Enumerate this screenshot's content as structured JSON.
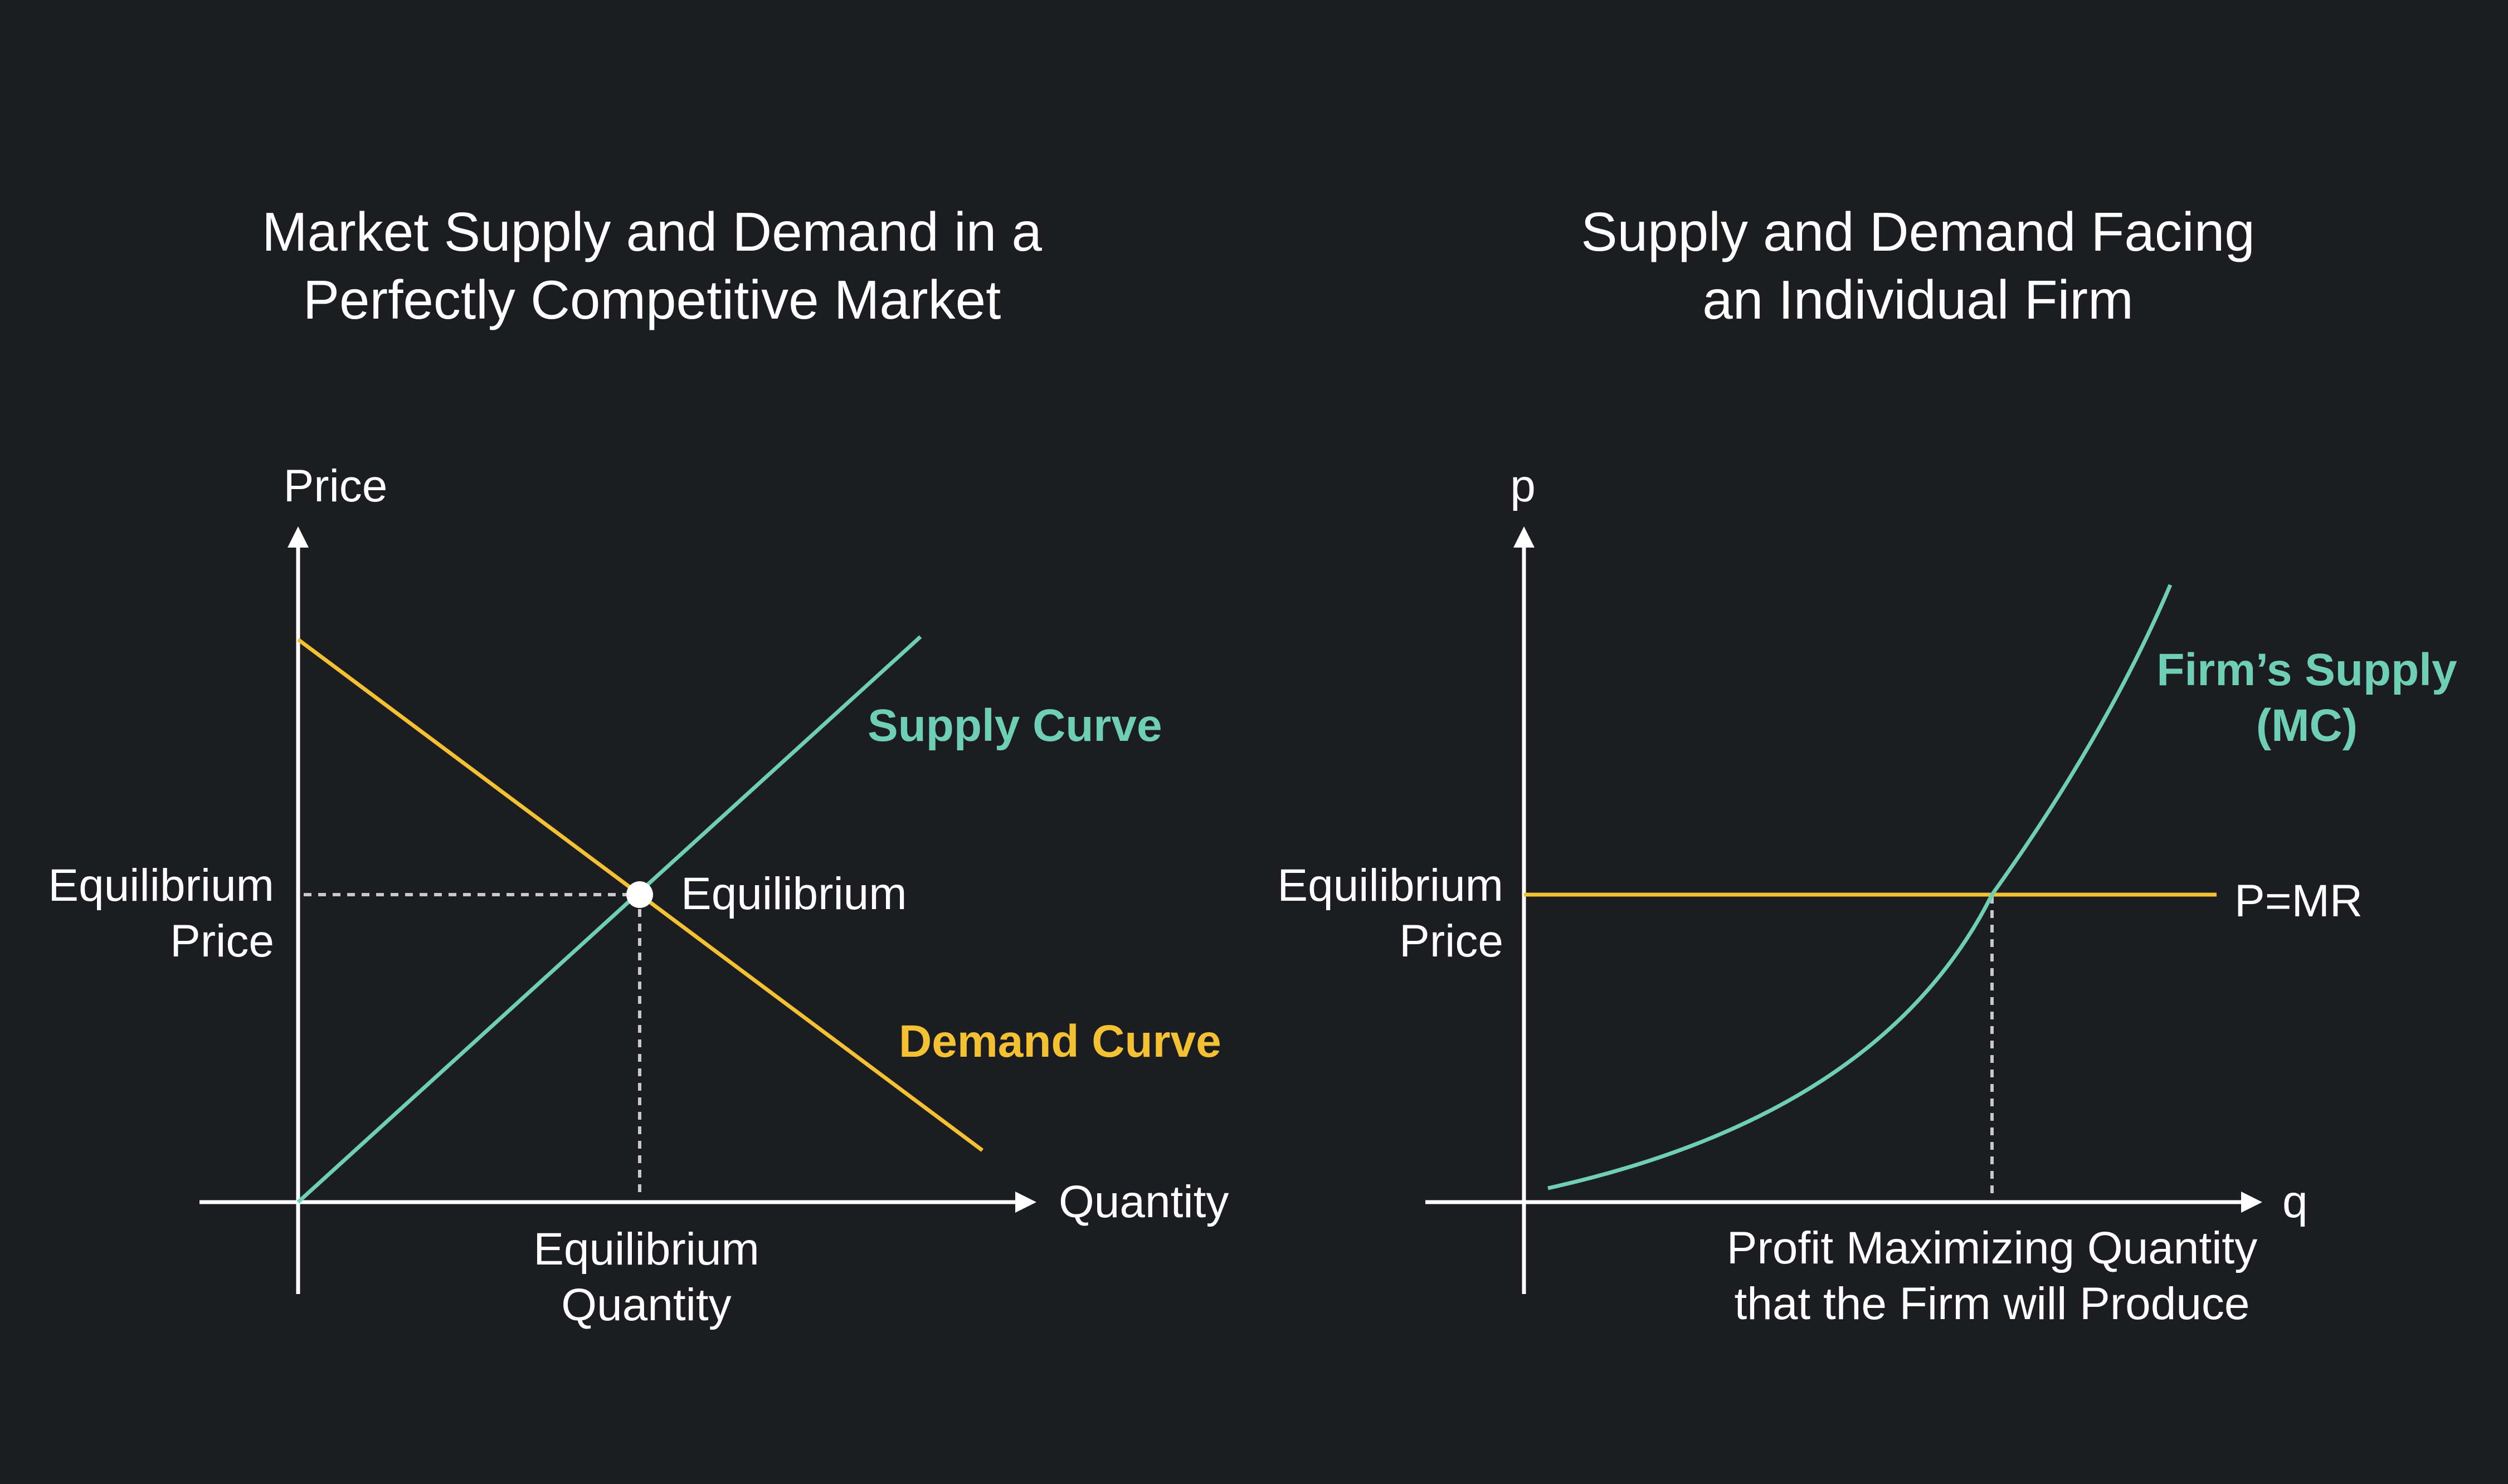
{
  "colors": {
    "background": "#1c1d20",
    "axis": "#ffffff",
    "supply": "#6fcfb4",
    "demand": "#f4c132",
    "dashed": "#c8c8c8"
  },
  "left": {
    "title_line1": "Market Supply and Demand in a",
    "title_line2": "Perfectly Competitive Market",
    "y_axis_label": "Price",
    "x_axis_label": "Quantity",
    "supply_label": "Supply Curve",
    "demand_label": "Demand Curve",
    "equilibrium_label": "Equilibrium",
    "eq_price_line1": "Equilibrium",
    "eq_price_line2": "Price",
    "eq_qty_line1": "Equilibrium",
    "eq_qty_line2": "Quantity"
  },
  "right": {
    "title_line1": "Supply and Demand Facing",
    "title_line2": "an Individual Firm",
    "y_axis_label": "p",
    "x_axis_label": "q",
    "supply_label_line1": "Firm’s Supply",
    "supply_label_line2": "(MC)",
    "mr_label": "P=MR",
    "eq_price_line1": "Equilibrium",
    "eq_price_line2": "Price",
    "qty_line1": "Profit Maximizing Quantity",
    "qty_line2": "that the Firm will Produce"
  }
}
